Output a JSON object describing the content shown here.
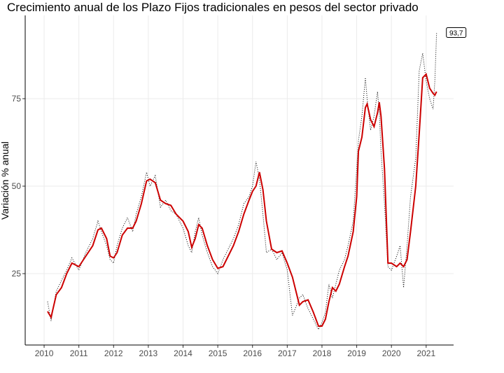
{
  "chart_data": {
    "type": "line",
    "title": "Crecimiento anual de los Plazo Fijos tradicionales en pesos del sector privado",
    "y_label": "Variación % anual",
    "x": [
      2010.1,
      2010.2,
      2010.35,
      2010.5,
      2010.65,
      2010.8,
      2011.0,
      2011.2,
      2011.4,
      2011.55,
      2011.65,
      2011.8,
      2011.9,
      2012.0,
      2012.1,
      2012.25,
      2012.4,
      2012.55,
      2012.65,
      2012.8,
      2012.95,
      2013.05,
      2013.2,
      2013.35,
      2013.5,
      2013.65,
      2013.8,
      2014.0,
      2014.15,
      2014.25,
      2014.35,
      2014.45,
      2014.55,
      2014.7,
      2014.85,
      2015.0,
      2015.15,
      2015.3,
      2015.45,
      2015.6,
      2015.75,
      2015.9,
      2016.0,
      2016.1,
      2016.2,
      2016.3,
      2016.4,
      2016.55,
      2016.7,
      2016.85,
      2017.0,
      2017.15,
      2017.35,
      2017.45,
      2017.6,
      2017.75,
      2017.9,
      2018.0,
      2018.1,
      2018.2,
      2018.3,
      2018.4,
      2018.5,
      2018.65,
      2018.75,
      2018.9,
      2019.0,
      2019.05,
      2019.15,
      2019.25,
      2019.3,
      2019.4,
      2019.5,
      2019.6,
      2019.65,
      2019.7,
      2019.8,
      2019.9,
      2020.0,
      2020.15,
      2020.25,
      2020.35,
      2020.45,
      2020.55,
      2020.7,
      2020.8,
      2020.9,
      2021.0,
      2021.1,
      2021.2,
      2021.25,
      2021.3
    ],
    "series": [
      {
        "color": "#000000",
        "style": "dotted",
        "values": [
          17,
          11.5,
          20,
          23,
          26,
          29.5,
          26,
          31,
          35,
          40,
          37,
          33,
          29,
          28,
          33,
          38,
          41,
          37,
          42,
          47,
          54,
          50,
          53,
          44,
          46,
          43,
          42,
          38,
          33,
          31,
          37,
          41,
          36,
          31,
          27,
          25,
          29,
          32,
          35,
          39,
          45,
          47,
          50,
          57,
          52,
          42,
          31,
          32,
          29,
          31,
          26,
          13,
          18,
          19,
          15,
          12,
          9,
          11,
          14,
          22,
          18,
          22,
          26,
          29,
          33,
          40,
          55,
          63,
          70,
          81,
          75,
          66,
          70,
          77,
          71,
          60,
          45,
          27,
          26,
          30,
          33,
          21,
          33,
          47,
          58,
          83,
          88,
          80,
          75,
          72,
          80,
          93.7
        ]
      },
      {
        "color": "#cc0000",
        "style": "solid",
        "values": [
          14.2,
          12.5,
          19,
          21,
          25,
          28,
          27,
          30,
          33,
          37.5,
          38,
          35,
          30,
          29.5,
          31,
          36,
          38,
          38,
          40,
          45,
          51.5,
          52,
          51,
          46,
          45,
          44.5,
          42,
          40,
          37,
          32.5,
          35,
          39,
          38,
          33,
          29,
          26.5,
          27,
          30,
          33,
          37,
          42,
          46,
          48.5,
          50,
          54,
          49,
          40,
          32,
          31,
          31.5,
          28,
          24,
          16,
          17,
          17.5,
          14,
          10,
          10,
          12,
          17,
          21,
          20,
          22,
          27,
          30,
          37,
          47,
          60,
          64,
          72.5,
          73.5,
          69,
          67,
          71,
          74,
          70,
          55,
          28,
          28,
          27,
          28,
          27,
          29,
          37,
          50,
          65,
          81,
          82,
          78,
          76.5,
          76,
          77
        ]
      }
    ],
    "annotation": {
      "x": 2021.3,
      "y": 93.7,
      "label": "93,7"
    },
    "xlim": [
      2009.455,
      2021.79
    ],
    "xticks": [
      2010,
      2011,
      2012,
      2013,
      2014,
      2015,
      2016,
      2017,
      2018,
      2019,
      2020,
      2021
    ],
    "ylim": [
      4.6,
      98.8
    ],
    "yticks": [
      25,
      50,
      75
    ],
    "grid": true
  }
}
